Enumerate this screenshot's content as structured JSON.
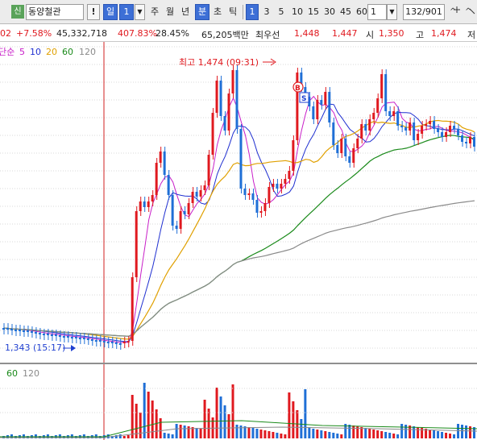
{
  "toolbar": {
    "stock_badge": "신",
    "stock_name": "동양철관",
    "exclaim": "!",
    "period_day": "일",
    "period_count": "1",
    "dropdown_arrow": "▼",
    "periods": [
      "주",
      "월",
      "년",
      "분",
      "초",
      "틱"
    ],
    "active_period": "분",
    "intervals": [
      "1",
      "3",
      "5",
      "10",
      "15",
      "30",
      "45",
      "60"
    ],
    "active_interval": "1",
    "count_value": "1",
    "page_indicator": "132/901",
    "zoom_icon": "zoom-icon",
    "expand_icon": "expand-icon"
  },
  "quote": {
    "change_tail": "02",
    "change_pct": "+7.58%",
    "volume": "45,332,718",
    "volume_ratio": "407.83%",
    "turnover": "28.45%",
    "amount": "65,205백만",
    "best_ask_label": "최우선",
    "best_ask": "1,448",
    "best_bid": "1,447",
    "open_label": "시",
    "open": "1,350",
    "high_label": "고",
    "high": "1,474",
    "low_label": "저"
  },
  "price_pane": {
    "legend_prefix": "단순",
    "ma_legend": [
      {
        "label": "5",
        "color": "#c81ec8"
      },
      {
        "label": "10",
        "color": "#1f2fd0"
      },
      {
        "label": "20",
        "color": "#e0a000"
      },
      {
        "label": "60",
        "color": "#1a8a1a"
      },
      {
        "label": "120",
        "color": "#8a8a8a"
      }
    ],
    "high_marker": "최고 1,474 (09:31)",
    "low_marker": "1,343 (15:17)",
    "buy_signal": "B",
    "sell_signal": "S"
  },
  "volume_pane": {
    "ma_legend": [
      {
        "label": "60",
        "color": "#1a8a1a"
      },
      {
        "label": "120",
        "color": "#8a8a8a"
      }
    ]
  },
  "colors": {
    "up": "#e0191f",
    "down": "#1f6fd6",
    "grid": "#d8d8d8",
    "session_line": "#d02020"
  }
}
